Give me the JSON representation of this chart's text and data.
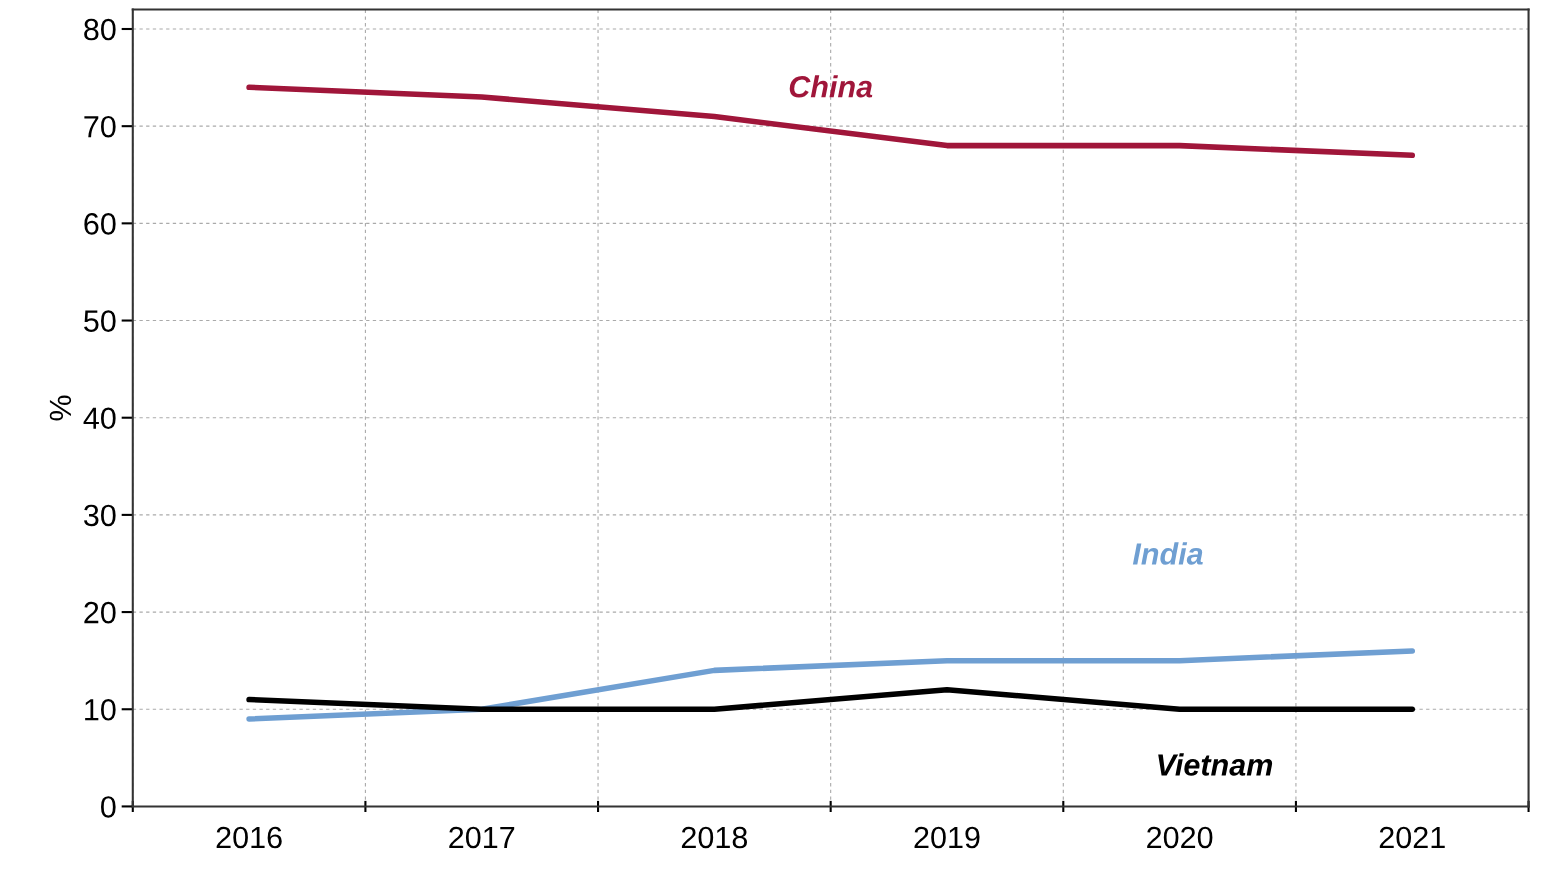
{
  "chart_data": {
    "type": "line",
    "ylabel": "%",
    "categories": [
      "2016",
      "2017",
      "2018",
      "2019",
      "2020",
      "2021"
    ],
    "series": [
      {
        "name": "China",
        "color": "#a0163a",
        "values": [
          74,
          73,
          71,
          68,
          68,
          67
        ]
      },
      {
        "name": "India",
        "color": "#6f9fd2",
        "values": [
          9,
          10,
          14,
          15,
          15,
          16
        ]
      },
      {
        "name": "Vietnam",
        "color": "#000000",
        "values": [
          11,
          10,
          10,
          12,
          10,
          10
        ]
      }
    ],
    "ylim": [
      0,
      82
    ],
    "yticks": [
      0,
      10,
      20,
      30,
      40,
      50,
      60,
      70,
      80
    ],
    "grid": true,
    "marker": "none",
    "line_style": "solid"
  }
}
